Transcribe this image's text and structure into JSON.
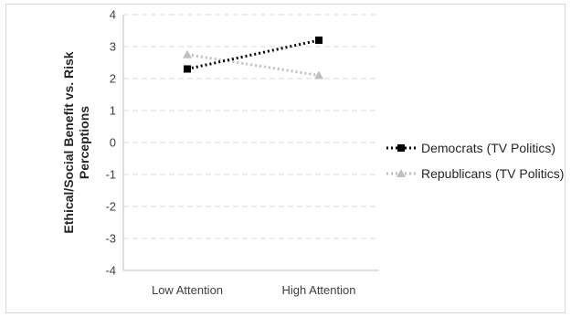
{
  "chart_data": {
    "type": "line",
    "categories": [
      "Low Attention",
      "High Attention"
    ],
    "series": [
      {
        "name": "Democrats (TV Politics)",
        "values": [
          2.3,
          3.2
        ],
        "color": "#000000",
        "marker": "square"
      },
      {
        "name": "Republicans (TV Politics)",
        "values": [
          2.75,
          2.1
        ],
        "color": "#bfbfbf",
        "marker": "triangle"
      }
    ],
    "title": "",
    "xlabel": "",
    "ylabel_lines": [
      "Ethical/Social Benefit vs. Risk",
      "Perceptions"
    ],
    "ylim": [
      -4,
      4
    ],
    "yticks": [
      "4",
      "3",
      "2",
      "1",
      "0",
      "-1",
      "-2",
      "-3",
      "-4"
    ],
    "grid": "horizontal dashed",
    "legend": "right"
  }
}
